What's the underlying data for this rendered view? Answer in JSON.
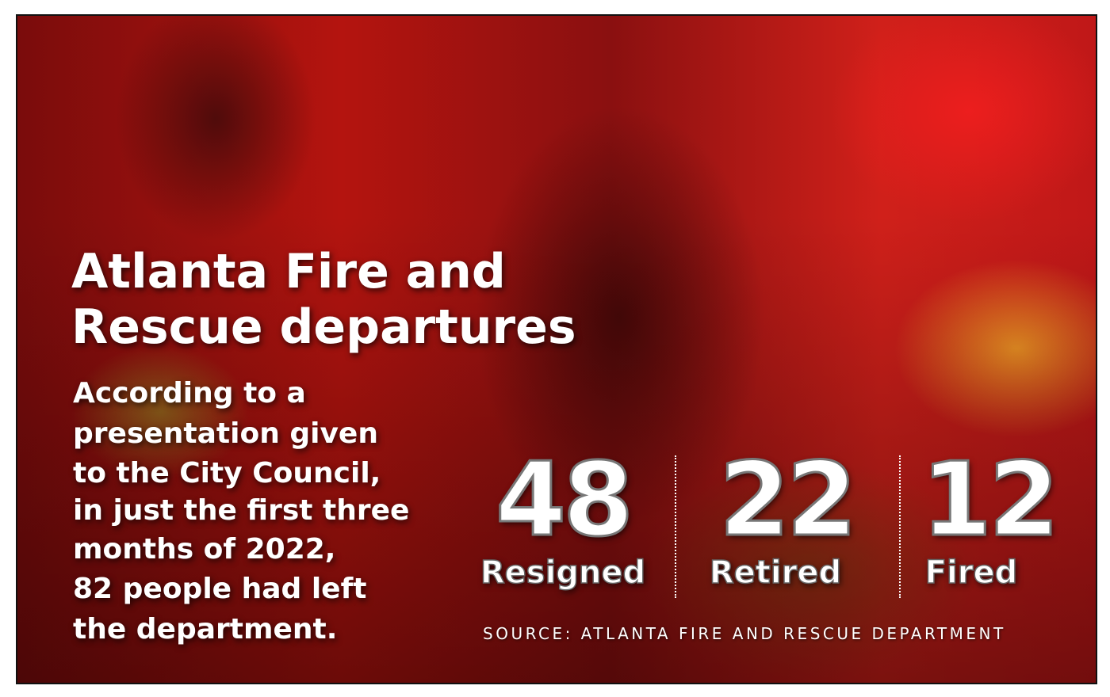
{
  "header": {
    "title_lines": [
      "Atlanta Fire and",
      "Rescue departures"
    ]
  },
  "body": {
    "lines": [
      "According to a",
      "presentation given",
      "to the City Council,",
      "in just the first three",
      "months of 2022,",
      "82 people had left",
      "the department."
    ]
  },
  "stats": [
    {
      "value": 48,
      "label": "Resigned"
    },
    {
      "value": 22,
      "label": "Retired"
    },
    {
      "value": 12,
      "label": "Fired"
    }
  ],
  "source": "SOURCE: ATLANTA FIRE AND RESCUE DEPARTMENT"
}
